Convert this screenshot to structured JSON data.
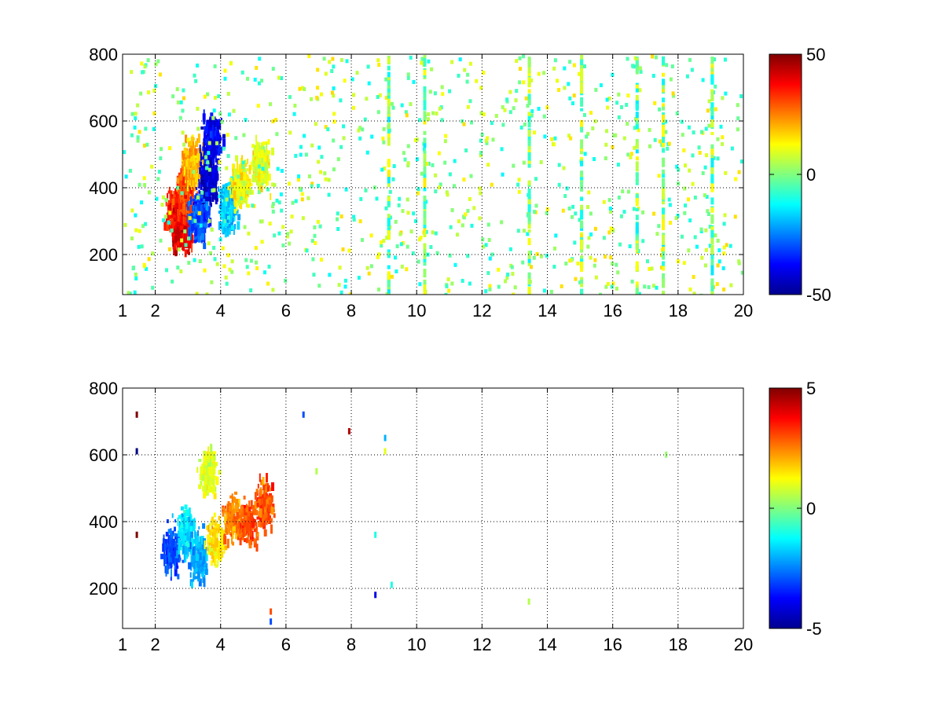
{
  "chart_data": [
    {
      "type": "heatmap",
      "title": "",
      "xlabel": "",
      "ylabel": "",
      "x_ticks": [
        1,
        2,
        4,
        6,
        8,
        10,
        12,
        14,
        16,
        18,
        20
      ],
      "y_ticks": [
        200,
        400,
        600,
        800
      ],
      "xlim": [
        1,
        20
      ],
      "ylim": [
        80,
        800
      ],
      "grid": "dotted",
      "colormap": "jet",
      "colorbar": {
        "clim": [
          -50,
          50
        ],
        "ticks": [
          50,
          0,
          -50
        ]
      },
      "blobs": [
        {
          "x": 2.6,
          "y": 330,
          "value": 35
        },
        {
          "x": 2.8,
          "y": 290,
          "value": 40
        },
        {
          "x": 2.9,
          "y": 400,
          "value": 30
        },
        {
          "x": 3.1,
          "y": 480,
          "value": 20
        },
        {
          "x": 3.6,
          "y": 430,
          "value": -42
        },
        {
          "x": 3.7,
          "y": 560,
          "value": -38
        },
        {
          "x": 3.3,
          "y": 320,
          "value": -30
        },
        {
          "x": 4.2,
          "y": 350,
          "value": -18
        },
        {
          "x": 4.6,
          "y": 420,
          "value": 12
        },
        {
          "x": 5.2,
          "y": 480,
          "value": 10
        }
      ],
      "stripes": [
        9.1,
        10.2,
        13.4,
        15.0,
        16.7,
        17.5,
        19.0
      ]
    },
    {
      "type": "heatmap",
      "title": "",
      "xlabel": "",
      "ylabel": "",
      "x_ticks": [
        1,
        2,
        4,
        6,
        8,
        10,
        12,
        14,
        16,
        18,
        20
      ],
      "y_ticks": [
        200,
        400,
        600,
        800
      ],
      "xlim": [
        1,
        20
      ],
      "ylim": [
        80,
        800
      ],
      "grid": "dotted",
      "colormap": "jet",
      "colorbar": {
        "clim": [
          -5,
          5
        ],
        "ticks": [
          5,
          0,
          -5
        ]
      },
      "blobs": [
        {
          "x": 2.5,
          "y": 320,
          "value": -3
        },
        {
          "x": 2.9,
          "y": 380,
          "value": -1.5
        },
        {
          "x": 3.3,
          "y": 300,
          "value": -2
        },
        {
          "x": 3.6,
          "y": 560,
          "value": 1
        },
        {
          "x": 3.8,
          "y": 350,
          "value": 1.5
        },
        {
          "x": 4.3,
          "y": 420,
          "value": 2.5
        },
        {
          "x": 4.8,
          "y": 400,
          "value": 3
        },
        {
          "x": 5.3,
          "y": 460,
          "value": 3
        }
      ],
      "scatter": [
        {
          "x": 1.4,
          "y": 730,
          "value": 5
        },
        {
          "x": 1.4,
          "y": 620,
          "value": -5
        },
        {
          "x": 1.4,
          "y": 370,
          "value": 5
        },
        {
          "x": 5.5,
          "y": 140,
          "value": 3
        },
        {
          "x": 5.5,
          "y": 110,
          "value": -3
        },
        {
          "x": 6.5,
          "y": 730,
          "value": -3
        },
        {
          "x": 6.9,
          "y": 560,
          "value": 0.5
        },
        {
          "x": 7.9,
          "y": 680,
          "value": 4.5
        },
        {
          "x": 9.0,
          "y": 660,
          "value": -2
        },
        {
          "x": 9.0,
          "y": 620,
          "value": 1
        },
        {
          "x": 8.7,
          "y": 370,
          "value": -1
        },
        {
          "x": 9.2,
          "y": 220,
          "value": -1
        },
        {
          "x": 8.7,
          "y": 190,
          "value": -4
        },
        {
          "x": 13.4,
          "y": 170,
          "value": 0.5
        },
        {
          "x": 17.6,
          "y": 610,
          "value": 0.2
        }
      ]
    }
  ]
}
